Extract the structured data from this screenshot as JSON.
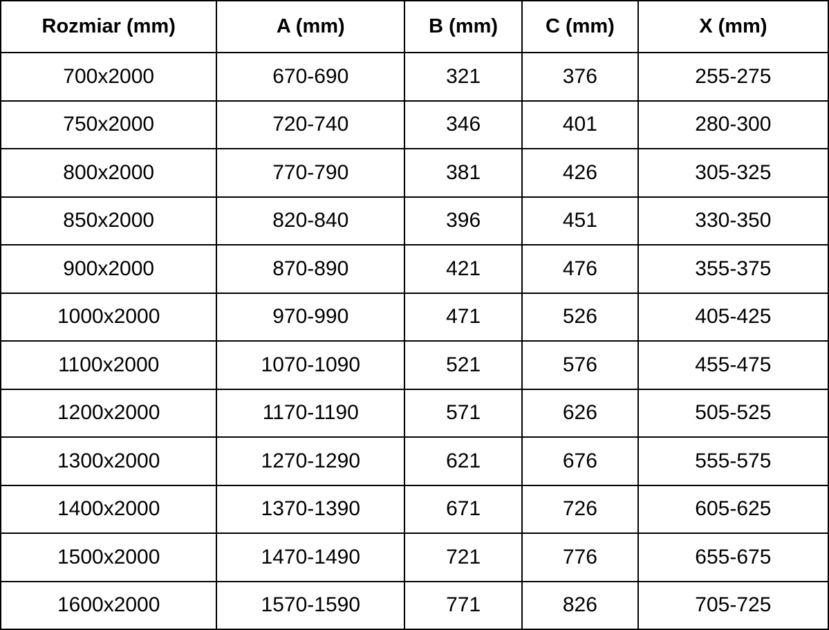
{
  "chart_data": {
    "type": "table",
    "title": "",
    "columns": [
      "Rozmiar (mm)",
      "A (mm)",
      "B (mm)",
      "C (mm)",
      "X (mm)"
    ],
    "rows": [
      [
        "700x2000",
        "670-690",
        "321",
        "376",
        "255-275"
      ],
      [
        "750x2000",
        "720-740",
        "346",
        "401",
        "280-300"
      ],
      [
        "800x2000",
        "770-790",
        "381",
        "426",
        "305-325"
      ],
      [
        "850x2000",
        "820-840",
        "396",
        "451",
        "330-350"
      ],
      [
        "900x2000",
        "870-890",
        "421",
        "476",
        "355-375"
      ],
      [
        "1000x2000",
        "970-990",
        "471",
        "526",
        "405-425"
      ],
      [
        "1100x2000",
        "1070-1090",
        "521",
        "576",
        "455-475"
      ],
      [
        "1200x2000",
        "1170-1190",
        "571",
        "626",
        "505-525"
      ],
      [
        "1300x2000",
        "1270-1290",
        "621",
        "676",
        "555-575"
      ],
      [
        "1400x2000",
        "1370-1390",
        "671",
        "726",
        "605-625"
      ],
      [
        "1500x2000",
        "1470-1490",
        "721",
        "776",
        "655-675"
      ],
      [
        "1600x2000",
        "1570-1590",
        "771",
        "826",
        "705-725"
      ]
    ]
  },
  "colors": {
    "border": "#000000",
    "text": "#000000",
    "background": "#ffffff"
  }
}
